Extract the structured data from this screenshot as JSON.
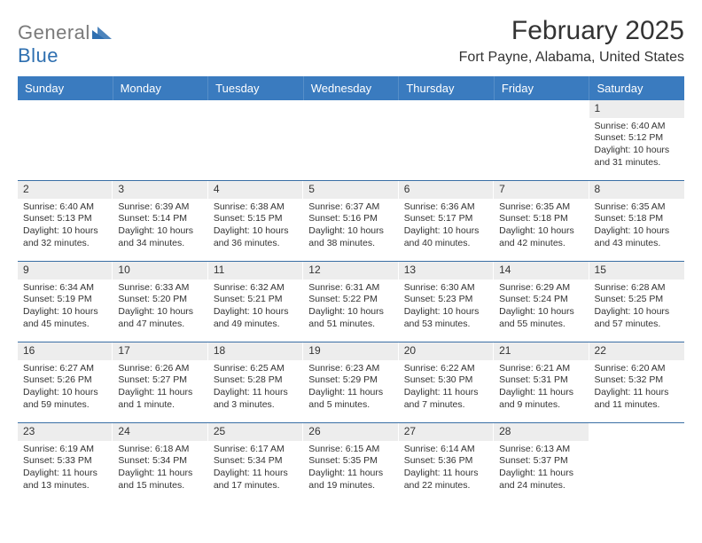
{
  "brand": {
    "word1": "General",
    "word2": "Blue",
    "word1_color": "#7a7a7a",
    "word2_color": "#2e6fb0",
    "mark_color": "#2e6fb0"
  },
  "title": "February 2025",
  "location": "Fort Payne, Alabama, United States",
  "header_bg": "#3a7bbf",
  "week_divider_color": "#3a6fa5",
  "daynum_bg": "#ededed",
  "day_names": [
    "Sunday",
    "Monday",
    "Tuesday",
    "Wednesday",
    "Thursday",
    "Friday",
    "Saturday"
  ],
  "weeks": [
    [
      {
        "day": "",
        "sunrise": "",
        "sunset": "",
        "daylight": ""
      },
      {
        "day": "",
        "sunrise": "",
        "sunset": "",
        "daylight": ""
      },
      {
        "day": "",
        "sunrise": "",
        "sunset": "",
        "daylight": ""
      },
      {
        "day": "",
        "sunrise": "",
        "sunset": "",
        "daylight": ""
      },
      {
        "day": "",
        "sunrise": "",
        "sunset": "",
        "daylight": ""
      },
      {
        "day": "",
        "sunrise": "",
        "sunset": "",
        "daylight": ""
      },
      {
        "day": "1",
        "sunrise": "Sunrise: 6:40 AM",
        "sunset": "Sunset: 5:12 PM",
        "daylight": "Daylight: 10 hours and 31 minutes."
      }
    ],
    [
      {
        "day": "2",
        "sunrise": "Sunrise: 6:40 AM",
        "sunset": "Sunset: 5:13 PM",
        "daylight": "Daylight: 10 hours and 32 minutes."
      },
      {
        "day": "3",
        "sunrise": "Sunrise: 6:39 AM",
        "sunset": "Sunset: 5:14 PM",
        "daylight": "Daylight: 10 hours and 34 minutes."
      },
      {
        "day": "4",
        "sunrise": "Sunrise: 6:38 AM",
        "sunset": "Sunset: 5:15 PM",
        "daylight": "Daylight: 10 hours and 36 minutes."
      },
      {
        "day": "5",
        "sunrise": "Sunrise: 6:37 AM",
        "sunset": "Sunset: 5:16 PM",
        "daylight": "Daylight: 10 hours and 38 minutes."
      },
      {
        "day": "6",
        "sunrise": "Sunrise: 6:36 AM",
        "sunset": "Sunset: 5:17 PM",
        "daylight": "Daylight: 10 hours and 40 minutes."
      },
      {
        "day": "7",
        "sunrise": "Sunrise: 6:35 AM",
        "sunset": "Sunset: 5:18 PM",
        "daylight": "Daylight: 10 hours and 42 minutes."
      },
      {
        "day": "8",
        "sunrise": "Sunrise: 6:35 AM",
        "sunset": "Sunset: 5:18 PM",
        "daylight": "Daylight: 10 hours and 43 minutes."
      }
    ],
    [
      {
        "day": "9",
        "sunrise": "Sunrise: 6:34 AM",
        "sunset": "Sunset: 5:19 PM",
        "daylight": "Daylight: 10 hours and 45 minutes."
      },
      {
        "day": "10",
        "sunrise": "Sunrise: 6:33 AM",
        "sunset": "Sunset: 5:20 PM",
        "daylight": "Daylight: 10 hours and 47 minutes."
      },
      {
        "day": "11",
        "sunrise": "Sunrise: 6:32 AM",
        "sunset": "Sunset: 5:21 PM",
        "daylight": "Daylight: 10 hours and 49 minutes."
      },
      {
        "day": "12",
        "sunrise": "Sunrise: 6:31 AM",
        "sunset": "Sunset: 5:22 PM",
        "daylight": "Daylight: 10 hours and 51 minutes."
      },
      {
        "day": "13",
        "sunrise": "Sunrise: 6:30 AM",
        "sunset": "Sunset: 5:23 PM",
        "daylight": "Daylight: 10 hours and 53 minutes."
      },
      {
        "day": "14",
        "sunrise": "Sunrise: 6:29 AM",
        "sunset": "Sunset: 5:24 PM",
        "daylight": "Daylight: 10 hours and 55 minutes."
      },
      {
        "day": "15",
        "sunrise": "Sunrise: 6:28 AM",
        "sunset": "Sunset: 5:25 PM",
        "daylight": "Daylight: 10 hours and 57 minutes."
      }
    ],
    [
      {
        "day": "16",
        "sunrise": "Sunrise: 6:27 AM",
        "sunset": "Sunset: 5:26 PM",
        "daylight": "Daylight: 10 hours and 59 minutes."
      },
      {
        "day": "17",
        "sunrise": "Sunrise: 6:26 AM",
        "sunset": "Sunset: 5:27 PM",
        "daylight": "Daylight: 11 hours and 1 minute."
      },
      {
        "day": "18",
        "sunrise": "Sunrise: 6:25 AM",
        "sunset": "Sunset: 5:28 PM",
        "daylight": "Daylight: 11 hours and 3 minutes."
      },
      {
        "day": "19",
        "sunrise": "Sunrise: 6:23 AM",
        "sunset": "Sunset: 5:29 PM",
        "daylight": "Daylight: 11 hours and 5 minutes."
      },
      {
        "day": "20",
        "sunrise": "Sunrise: 6:22 AM",
        "sunset": "Sunset: 5:30 PM",
        "daylight": "Daylight: 11 hours and 7 minutes."
      },
      {
        "day": "21",
        "sunrise": "Sunrise: 6:21 AM",
        "sunset": "Sunset: 5:31 PM",
        "daylight": "Daylight: 11 hours and 9 minutes."
      },
      {
        "day": "22",
        "sunrise": "Sunrise: 6:20 AM",
        "sunset": "Sunset: 5:32 PM",
        "daylight": "Daylight: 11 hours and 11 minutes."
      }
    ],
    [
      {
        "day": "23",
        "sunrise": "Sunrise: 6:19 AM",
        "sunset": "Sunset: 5:33 PM",
        "daylight": "Daylight: 11 hours and 13 minutes."
      },
      {
        "day": "24",
        "sunrise": "Sunrise: 6:18 AM",
        "sunset": "Sunset: 5:34 PM",
        "daylight": "Daylight: 11 hours and 15 minutes."
      },
      {
        "day": "25",
        "sunrise": "Sunrise: 6:17 AM",
        "sunset": "Sunset: 5:34 PM",
        "daylight": "Daylight: 11 hours and 17 minutes."
      },
      {
        "day": "26",
        "sunrise": "Sunrise: 6:15 AM",
        "sunset": "Sunset: 5:35 PM",
        "daylight": "Daylight: 11 hours and 19 minutes."
      },
      {
        "day": "27",
        "sunrise": "Sunrise: 6:14 AM",
        "sunset": "Sunset: 5:36 PM",
        "daylight": "Daylight: 11 hours and 22 minutes."
      },
      {
        "day": "28",
        "sunrise": "Sunrise: 6:13 AM",
        "sunset": "Sunset: 5:37 PM",
        "daylight": "Daylight: 11 hours and 24 minutes."
      },
      {
        "day": "",
        "sunrise": "",
        "sunset": "",
        "daylight": ""
      }
    ]
  ]
}
